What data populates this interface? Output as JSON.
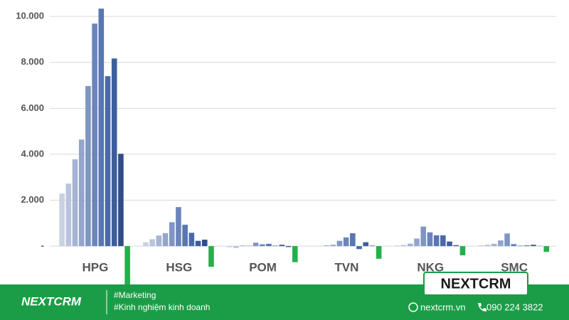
{
  "chart_data": {
    "type": "bar",
    "categories": [
      "HPG",
      "HSG",
      "POM",
      "TVN",
      "NKG",
      "SMC"
    ],
    "series": [
      {
        "color": "#c9d1e3",
        "values": [
          2290,
          170,
          -50,
          0,
          30,
          40
        ]
      },
      {
        "color": "#b8c3dc",
        "values": [
          2720,
          300,
          -80,
          0,
          50,
          60
        ]
      },
      {
        "color": "#a5b4d4",
        "values": [
          3780,
          460,
          30,
          40,
          110,
          100
        ]
      },
      {
        "color": "#93a5cc",
        "values": [
          4640,
          560,
          20,
          60,
          330,
          250
        ]
      },
      {
        "color": "#7f95c3",
        "values": [
          6970,
          1040,
          150,
          230,
          850,
          550
        ]
      },
      {
        "color": "#6b85bb",
        "values": [
          9690,
          1700,
          80,
          380,
          600,
          90
        ]
      },
      {
        "color": "#5876b3",
        "values": [
          10340,
          930,
          100,
          560,
          470,
          20
        ]
      },
      {
        "color": "#4a69a8",
        "values": [
          7400,
          580,
          20,
          -130,
          470,
          30
        ]
      },
      {
        "color": "#3e5d9c",
        "values": [
          8170,
          230,
          60,
          170,
          200,
          60
        ]
      },
      {
        "color": "#2f4d88",
        "values": [
          4020,
          280,
          -40,
          20,
          40,
          10
        ]
      },
      {
        "color": "#22b14c",
        "values": [
          -1700,
          -900,
          -700,
          -550,
          -400,
          -250
        ]
      }
    ],
    "ylim": [
      -1700,
      10500
    ],
    "yticks": [
      {
        "value": 0,
        "label": "-"
      },
      {
        "value": 2000,
        "label": "2.000"
      },
      {
        "value": 4000,
        "label": "4.000"
      },
      {
        "value": 6000,
        "label": "6.000"
      },
      {
        "value": 8000,
        "label": "8.000"
      },
      {
        "value": 10000,
        "label": "10.000"
      }
    ],
    "grid": true
  },
  "footer": {
    "logo": "NEXTCRM",
    "tags": [
      "#Marketing",
      "#Kinh nghiệm kinh doanh"
    ],
    "website": "nextcrm.vn",
    "phone": "090 224 3822",
    "badge": "NEXTCRM"
  }
}
